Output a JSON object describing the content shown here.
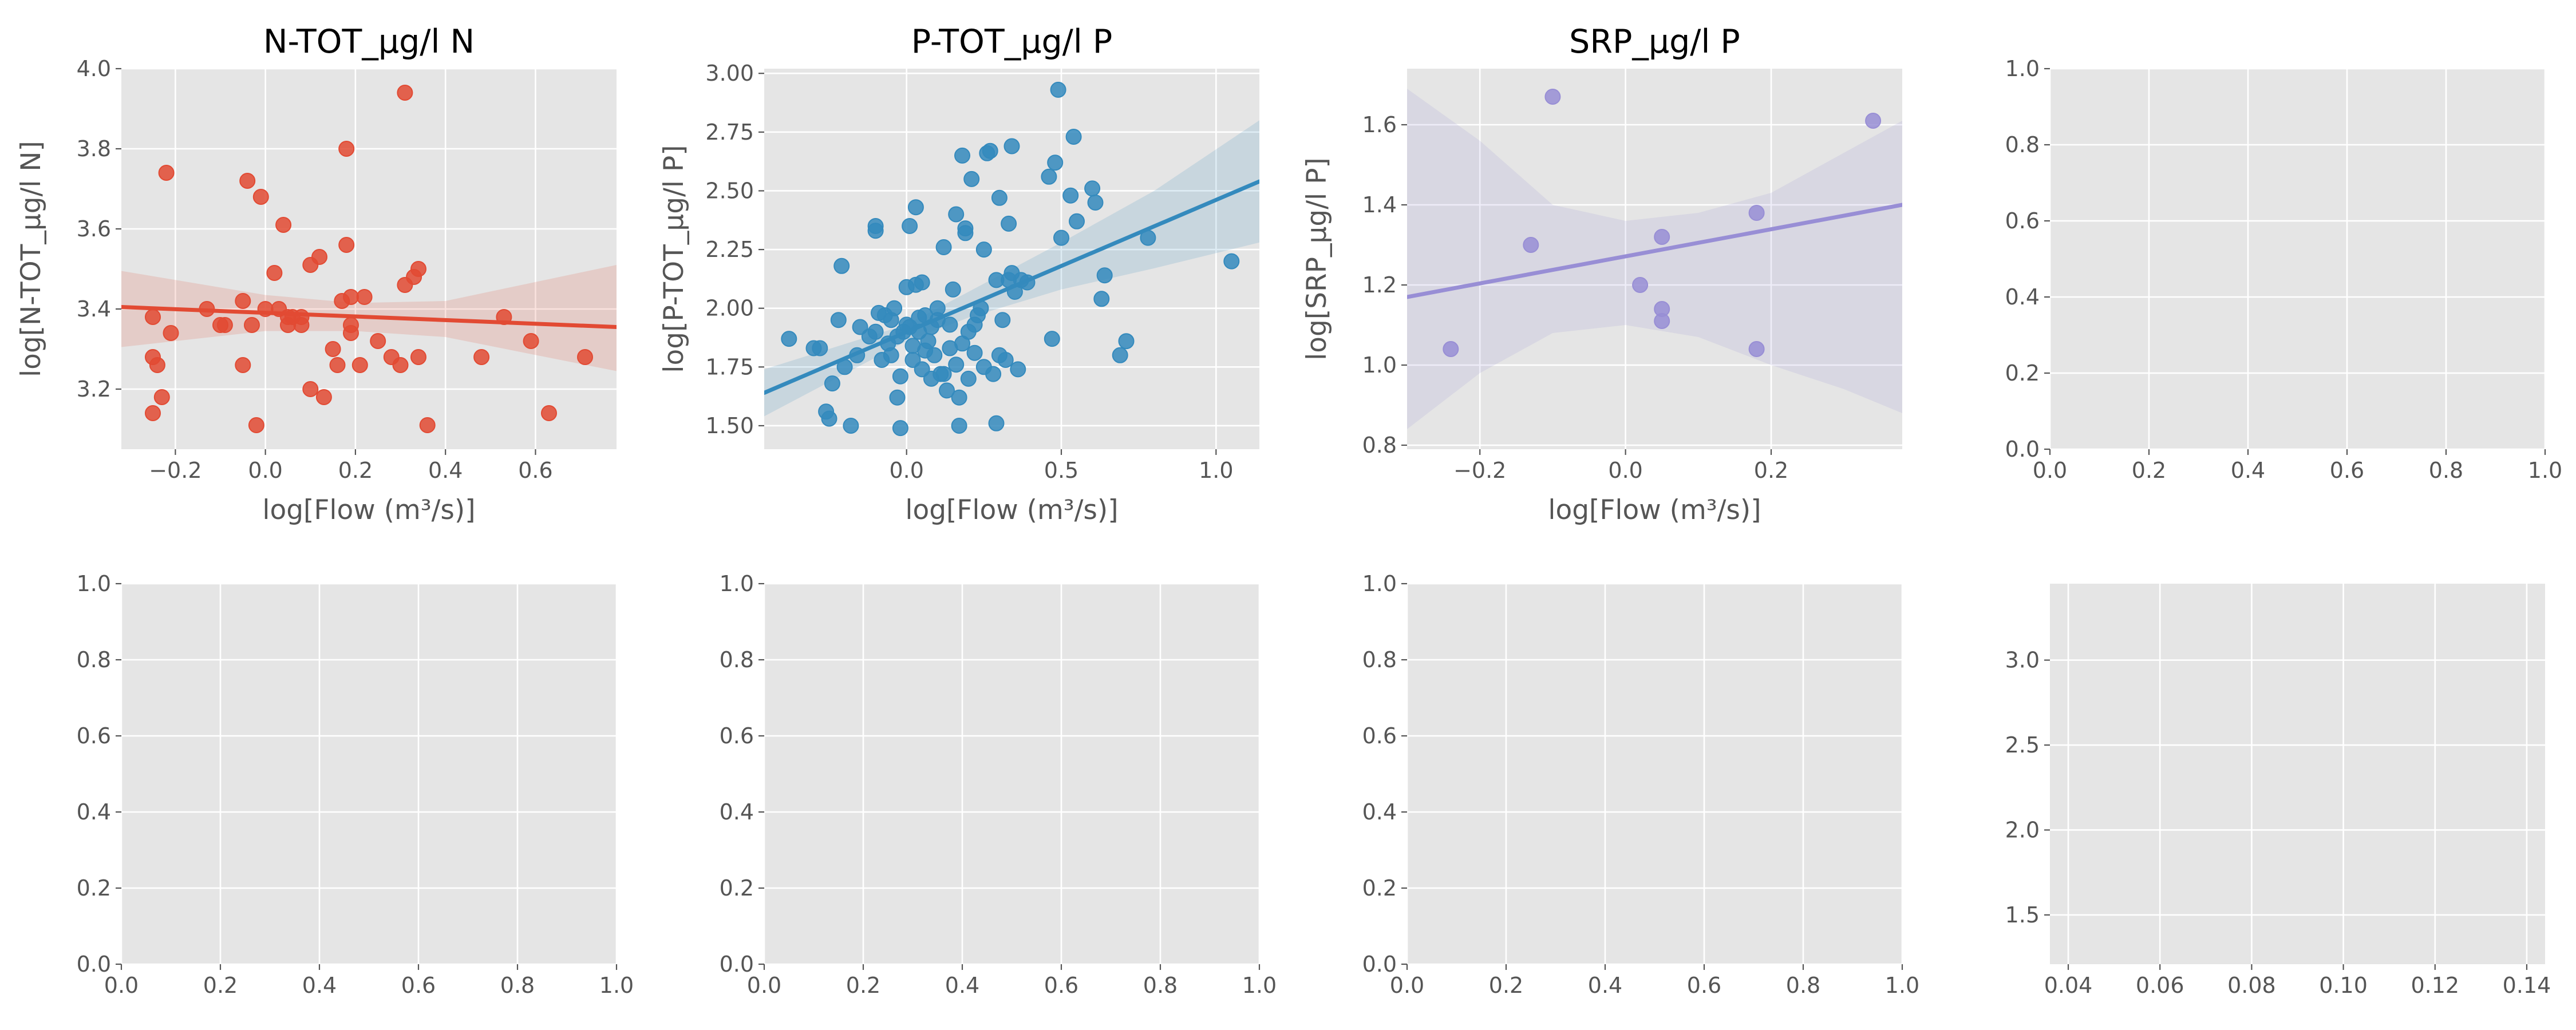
{
  "colors": {
    "panel_bg": "#e5e5e5",
    "grid": "#ffffff",
    "tick_text": "#555555",
    "n_tot": "#e24a33",
    "p_tot": "#348abd",
    "srp": "#988ed5"
  },
  "chart_data": [
    {
      "type": "scatter",
      "title": "N-TOT_µg/l N",
      "xlabel": "log[Flow (m³/s)]",
      "ylabel": "log[N-TOT_µg/l N]",
      "xlim": [
        -0.32,
        0.78
      ],
      "ylim": [
        3.05,
        4.0
      ],
      "xticks": [
        -0.2,
        0.0,
        0.2,
        0.4,
        0.6
      ],
      "xtick_labels": [
        "−0.2",
        "0.0",
        "0.2",
        "0.4",
        "0.6"
      ],
      "yticks": [
        3.2,
        3.4,
        3.6,
        3.8,
        4.0
      ],
      "ytick_labels": [
        "3.2",
        "3.4",
        "3.6",
        "3.8",
        "4.0"
      ],
      "grid": true,
      "color": "#e24a33",
      "fit_line": [
        [
          -0.32,
          3.405
        ],
        [
          0.78,
          3.355
        ]
      ],
      "ci_band": {
        "x": [
          -0.32,
          0.0,
          0.2,
          0.4,
          0.78
        ],
        "lower": [
          3.305,
          3.345,
          3.345,
          3.33,
          3.245
        ],
        "upper": [
          3.495,
          3.435,
          3.415,
          3.42,
          3.51
        ]
      },
      "points": [
        [
          -0.25,
          3.14
        ],
        [
          -0.24,
          3.26
        ],
        [
          -0.25,
          3.28
        ],
        [
          -0.25,
          3.38
        ],
        [
          -0.23,
          3.18
        ],
        [
          -0.22,
          3.74
        ],
        [
          -0.21,
          3.34
        ],
        [
          -0.13,
          3.4
        ],
        [
          -0.1,
          3.36
        ],
        [
          -0.09,
          3.36
        ],
        [
          -0.05,
          3.42
        ],
        [
          -0.05,
          3.26
        ],
        [
          -0.04,
          3.72
        ],
        [
          -0.03,
          3.36
        ],
        [
          -0.02,
          3.11
        ],
        [
          -0.01,
          3.68
        ],
        [
          0.0,
          3.4
        ],
        [
          0.02,
          3.49
        ],
        [
          0.03,
          3.4
        ],
        [
          0.04,
          3.61
        ],
        [
          0.05,
          3.38
        ],
        [
          0.05,
          3.36
        ],
        [
          0.06,
          3.38
        ],
        [
          0.08,
          3.38
        ],
        [
          0.08,
          3.36
        ],
        [
          0.1,
          3.2
        ],
        [
          0.1,
          3.51
        ],
        [
          0.12,
          3.53
        ],
        [
          0.13,
          3.18
        ],
        [
          0.15,
          3.3
        ],
        [
          0.16,
          3.26
        ],
        [
          0.17,
          3.42
        ],
        [
          0.18,
          3.8
        ],
        [
          0.18,
          3.56
        ],
        [
          0.19,
          3.34
        ],
        [
          0.19,
          3.36
        ],
        [
          0.19,
          3.43
        ],
        [
          0.21,
          3.26
        ],
        [
          0.22,
          3.43
        ],
        [
          0.25,
          3.32
        ],
        [
          0.28,
          3.28
        ],
        [
          0.3,
          3.26
        ],
        [
          0.31,
          3.46
        ],
        [
          0.31,
          3.94
        ],
        [
          0.33,
          3.48
        ],
        [
          0.34,
          3.5
        ],
        [
          0.34,
          3.28
        ],
        [
          0.36,
          3.11
        ],
        [
          0.48,
          3.28
        ],
        [
          0.53,
          3.38
        ],
        [
          0.59,
          3.32
        ],
        [
          0.63,
          3.14
        ],
        [
          0.71,
          3.28
        ]
      ]
    },
    {
      "type": "scatter",
      "title": "P-TOT_µg/l P",
      "xlabel": "log[Flow (m³/s)]",
      "ylabel": "log[P-TOT_µg/l P]",
      "xlim": [
        -0.46,
        1.14
      ],
      "ylim": [
        1.4,
        3.02
      ],
      "xticks": [
        0.0,
        0.5,
        1.0
      ],
      "xtick_labels": [
        "0.0",
        "0.5",
        "1.0"
      ],
      "yticks": [
        1.5,
        1.75,
        2.0,
        2.25,
        2.5,
        2.75,
        3.0
      ],
      "ytick_labels": [
        "1.50",
        "1.75",
        "2.00",
        "2.25",
        "2.50",
        "2.75",
        "3.00"
      ],
      "grid": true,
      "color": "#348abd",
      "fit_line": [
        [
          -0.46,
          1.64
        ],
        [
          1.14,
          2.54
        ]
      ],
      "ci_band": {
        "x": [
          -0.46,
          0.0,
          0.2,
          0.5,
          0.8,
          1.14
        ],
        "lower": [
          1.54,
          1.86,
          1.96,
          2.08,
          2.17,
          2.28
        ],
        "upper": [
          1.74,
          1.93,
          2.07,
          2.28,
          2.5,
          2.8
        ]
      },
      "points": [
        [
          -0.38,
          1.87
        ],
        [
          -0.3,
          1.83
        ],
        [
          -0.28,
          1.83
        ],
        [
          -0.26,
          1.56
        ],
        [
          -0.25,
          1.53
        ],
        [
          -0.24,
          1.68
        ],
        [
          -0.22,
          1.95
        ],
        [
          -0.21,
          2.18
        ],
        [
          -0.2,
          1.75
        ],
        [
          -0.18,
          1.5
        ],
        [
          -0.16,
          1.8
        ],
        [
          -0.15,
          1.92
        ],
        [
          -0.12,
          1.88
        ],
        [
          -0.1,
          1.9
        ],
        [
          -0.1,
          2.33
        ],
        [
          -0.1,
          2.35
        ],
        [
          -0.09,
          1.98
        ],
        [
          -0.08,
          1.78
        ],
        [
          -0.07,
          1.97
        ],
        [
          -0.06,
          1.85
        ],
        [
          -0.05,
          1.8
        ],
        [
          -0.05,
          1.95
        ],
        [
          -0.04,
          2.0
        ],
        [
          -0.03,
          1.62
        ],
        [
          -0.03,
          1.88
        ],
        [
          -0.02,
          1.71
        ],
        [
          -0.02,
          1.49
        ],
        [
          -0.01,
          1.9
        ],
        [
          0.0,
          1.93
        ],
        [
          0.0,
          2.09
        ],
        [
          0.01,
          2.35
        ],
        [
          0.01,
          1.92
        ],
        [
          0.02,
          1.78
        ],
        [
          0.02,
          1.84
        ],
        [
          0.03,
          2.1
        ],
        [
          0.03,
          2.43
        ],
        [
          0.04,
          1.9
        ],
        [
          0.04,
          1.96
        ],
        [
          0.05,
          1.74
        ],
        [
          0.05,
          2.11
        ],
        [
          0.06,
          1.82
        ],
        [
          0.06,
          1.97
        ],
        [
          0.07,
          1.86
        ],
        [
          0.08,
          1.7
        ],
        [
          0.08,
          1.92
        ],
        [
          0.09,
          1.8
        ],
        [
          0.1,
          1.95
        ],
        [
          0.1,
          2.0
        ],
        [
          0.11,
          1.72
        ],
        [
          0.12,
          2.26
        ],
        [
          0.12,
          1.72
        ],
        [
          0.13,
          1.65
        ],
        [
          0.14,
          1.83
        ],
        [
          0.14,
          1.93
        ],
        [
          0.15,
          2.08
        ],
        [
          0.16,
          2.4
        ],
        [
          0.16,
          1.76
        ],
        [
          0.17,
          1.5
        ],
        [
          0.17,
          1.62
        ],
        [
          0.18,
          1.85
        ],
        [
          0.18,
          2.65
        ],
        [
          0.19,
          2.34
        ],
        [
          0.19,
          2.32
        ],
        [
          0.2,
          1.9
        ],
        [
          0.2,
          1.7
        ],
        [
          0.21,
          2.55
        ],
        [
          0.22,
          1.93
        ],
        [
          0.22,
          1.81
        ],
        [
          0.23,
          1.97
        ],
        [
          0.24,
          2.0
        ],
        [
          0.25,
          1.75
        ],
        [
          0.25,
          2.25
        ],
        [
          0.26,
          2.66
        ],
        [
          0.27,
          2.67
        ],
        [
          0.28,
          1.72
        ],
        [
          0.29,
          2.12
        ],
        [
          0.29,
          1.51
        ],
        [
          0.3,
          2.47
        ],
        [
          0.3,
          1.8
        ],
        [
          0.31,
          1.95
        ],
        [
          0.32,
          1.78
        ],
        [
          0.33,
          2.12
        ],
        [
          0.33,
          2.36
        ],
        [
          0.34,
          2.69
        ],
        [
          0.34,
          2.15
        ],
        [
          0.35,
          2.07
        ],
        [
          0.36,
          1.74
        ],
        [
          0.37,
          2.12
        ],
        [
          0.39,
          2.11
        ],
        [
          0.46,
          2.56
        ],
        [
          0.47,
          1.87
        ],
        [
          0.48,
          2.62
        ],
        [
          0.49,
          2.93
        ],
        [
          0.5,
          2.3
        ],
        [
          0.53,
          2.48
        ],
        [
          0.54,
          2.73
        ],
        [
          0.55,
          2.37
        ],
        [
          0.6,
          2.51
        ],
        [
          0.61,
          2.45
        ],
        [
          0.63,
          2.04
        ],
        [
          0.64,
          2.14
        ],
        [
          0.69,
          1.8
        ],
        [
          0.71,
          1.86
        ],
        [
          0.78,
          2.3
        ],
        [
          1.05,
          2.2
        ]
      ]
    },
    {
      "type": "scatter",
      "title": "SRP_µg/l P",
      "xlabel": "log[Flow (m³/s)]",
      "ylabel": "log[SRP_µg/l P]",
      "xlim": [
        -0.3,
        0.38
      ],
      "ylim": [
        0.79,
        1.74
      ],
      "xticks": [
        -0.2,
        0.0,
        0.2
      ],
      "xtick_labels": [
        "−0.2",
        "0.0",
        "0.2"
      ],
      "yticks": [
        0.8,
        1.0,
        1.2,
        1.4,
        1.6
      ],
      "ytick_labels": [
        "0.8",
        "1.0",
        "1.2",
        "1.4",
        "1.6"
      ],
      "grid": true,
      "color": "#988ed5",
      "fit_line": [
        [
          -0.3,
          1.17
        ],
        [
          0.38,
          1.4
        ]
      ],
      "ci_band": {
        "x": [
          -0.3,
          -0.2,
          -0.1,
          0.0,
          0.1,
          0.2,
          0.3,
          0.38
        ],
        "lower": [
          0.84,
          0.98,
          1.08,
          1.1,
          1.07,
          1.0,
          0.94,
          0.88
        ],
        "upper": [
          1.69,
          1.56,
          1.4,
          1.36,
          1.38,
          1.43,
          1.53,
          1.61
        ]
      },
      "points": [
        [
          -0.24,
          1.04
        ],
        [
          -0.13,
          1.3
        ],
        [
          -0.1,
          1.67
        ],
        [
          0.02,
          1.2
        ],
        [
          0.05,
          1.14
        ],
        [
          0.05,
          1.11
        ],
        [
          0.05,
          1.32
        ],
        [
          0.18,
          1.38
        ],
        [
          0.18,
          1.04
        ],
        [
          0.34,
          1.61
        ]
      ]
    },
    {
      "type": "scatter",
      "title": "",
      "xlim": [
        0.0,
        1.0
      ],
      "ylim": [
        0.0,
        1.0
      ],
      "xticks": [
        0.0,
        0.2,
        0.4,
        0.6,
        0.8,
        1.0
      ],
      "xtick_labels": [
        "0.0",
        "0.2",
        "0.4",
        "0.6",
        "0.8",
        "1.0"
      ],
      "yticks": [
        0.0,
        0.2,
        0.4,
        0.6,
        0.8,
        1.0
      ],
      "ytick_labels": [
        "0.0",
        "0.2",
        "0.4",
        "0.6",
        "0.8",
        "1.0"
      ],
      "grid": true,
      "points": []
    },
    {
      "type": "scatter",
      "title": "",
      "xlim": [
        0.0,
        1.0
      ],
      "ylim": [
        0.0,
        1.0
      ],
      "xticks": [
        0.0,
        0.2,
        0.4,
        0.6,
        0.8,
        1.0
      ],
      "xtick_labels": [
        "0.0",
        "0.2",
        "0.4",
        "0.6",
        "0.8",
        "1.0"
      ],
      "yticks": [
        0.0,
        0.2,
        0.4,
        0.6,
        0.8,
        1.0
      ],
      "ytick_labels": [
        "0.0",
        "0.2",
        "0.4",
        "0.6",
        "0.8",
        "1.0"
      ],
      "grid": true,
      "points": []
    },
    {
      "type": "scatter",
      "title": "",
      "xlim": [
        0.0,
        1.0
      ],
      "ylim": [
        0.0,
        1.0
      ],
      "xticks": [
        0.0,
        0.2,
        0.4,
        0.6,
        0.8,
        1.0
      ],
      "xtick_labels": [
        "0.0",
        "0.2",
        "0.4",
        "0.6",
        "0.8",
        "1.0"
      ],
      "yticks": [
        0.0,
        0.2,
        0.4,
        0.6,
        0.8,
        1.0
      ],
      "ytick_labels": [
        "0.0",
        "0.2",
        "0.4",
        "0.6",
        "0.8",
        "1.0"
      ],
      "grid": true,
      "points": []
    },
    {
      "type": "scatter",
      "title": "",
      "xlim": [
        0.0,
        1.0
      ],
      "ylim": [
        0.0,
        1.0
      ],
      "xticks": [
        0.0,
        0.2,
        0.4,
        0.6,
        0.8,
        1.0
      ],
      "xtick_labels": [
        "0.0",
        "0.2",
        "0.4",
        "0.6",
        "0.8",
        "1.0"
      ],
      "yticks": [
        0.0,
        0.2,
        0.4,
        0.6,
        0.8,
        1.0
      ],
      "ytick_labels": [
        "0.0",
        "0.2",
        "0.4",
        "0.6",
        "0.8",
        "1.0"
      ],
      "grid": true,
      "points": []
    },
    {
      "type": "scatter",
      "title": "",
      "xlim": [
        0.036,
        0.144
      ],
      "ylim": [
        1.21,
        3.45
      ],
      "xticks": [
        0.04,
        0.06,
        0.08,
        0.1,
        0.12,
        0.14
      ],
      "xtick_labels": [
        "0.04",
        "0.06",
        "0.08",
        "0.10",
        "0.12",
        "0.14"
      ],
      "yticks": [
        1.5,
        2.0,
        2.5,
        3.0
      ],
      "ytick_labels": [
        "1.5",
        "2.0",
        "2.5",
        "3.0"
      ],
      "grid": true,
      "points": []
    }
  ]
}
